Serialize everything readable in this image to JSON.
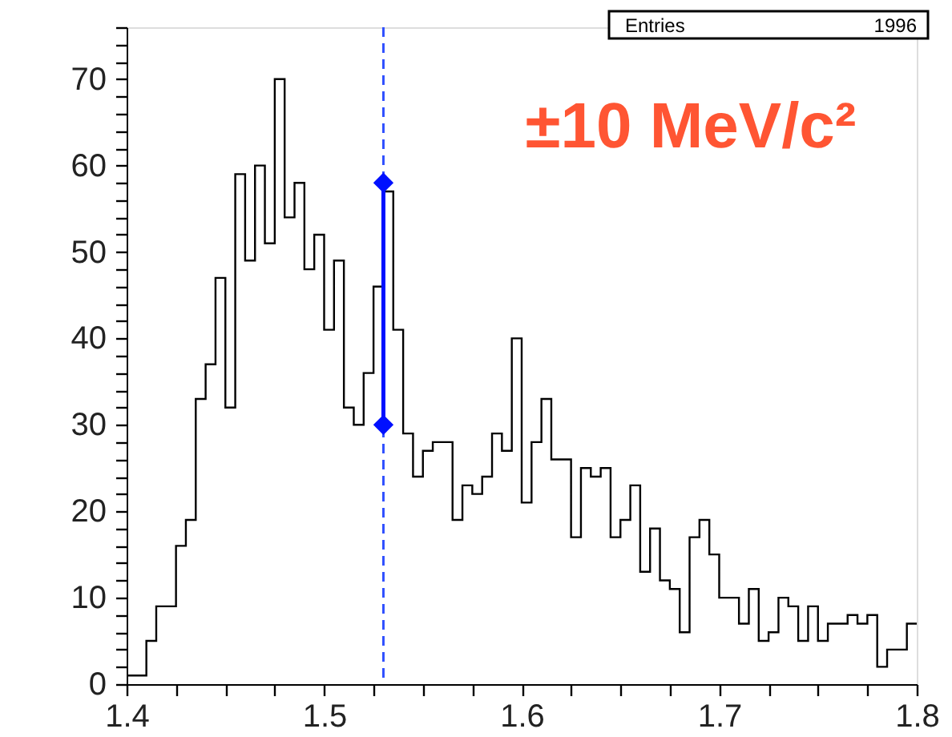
{
  "chart_data": {
    "type": "histogram",
    "color": "#000000",
    "bins": [
      1.4,
      1.405,
      1.41,
      1.415,
      1.42,
      1.425,
      1.43,
      1.435,
      1.44,
      1.445,
      1.45,
      1.455,
      1.46,
      1.465,
      1.47,
      1.475,
      1.48,
      1.485,
      1.49,
      1.495,
      1.5,
      1.505,
      1.51,
      1.515,
      1.52,
      1.525,
      1.53,
      1.535,
      1.54,
      1.545,
      1.55,
      1.555,
      1.56,
      1.565,
      1.57,
      1.575,
      1.58,
      1.585,
      1.59,
      1.595,
      1.6,
      1.605,
      1.61,
      1.615,
      1.62,
      1.625,
      1.63,
      1.635,
      1.64,
      1.645,
      1.65,
      1.655,
      1.66,
      1.665,
      1.67,
      1.675,
      1.68,
      1.685,
      1.69,
      1.695,
      1.7,
      1.705,
      1.71,
      1.715,
      1.72,
      1.725,
      1.73,
      1.735,
      1.74,
      1.745,
      1.75,
      1.755,
      1.76,
      1.765,
      1.77,
      1.775,
      1.78,
      1.785,
      1.79,
      1.795,
      1.8
    ],
    "values": [
      1,
      1,
      5,
      9,
      9,
      16,
      19,
      33,
      37,
      47,
      32,
      59,
      49,
      60,
      51,
      70,
      54,
      58,
      48,
      52,
      41,
      49,
      32,
      30,
      36,
      46,
      57,
      41,
      29,
      24,
      27,
      28,
      28,
      19,
      23,
      22,
      24,
      29,
      27,
      40,
      21,
      28,
      33,
      26,
      26,
      17,
      25,
      24,
      25,
      17,
      19,
      23,
      13,
      18,
      12,
      11,
      6,
      17,
      19,
      15,
      10,
      10,
      7,
      11,
      5,
      6,
      10,
      9,
      5,
      9,
      5,
      7,
      7,
      8,
      7,
      8,
      2,
      4,
      4,
      7
    ],
    "series": [
      {
        "type": "line",
        "x": [
          1.53,
          1.53
        ],
        "values": [
          30,
          58
        ],
        "color": "#0010ff",
        "marker": "diamond"
      }
    ],
    "xlim": [
      1.4,
      1.8
    ],
    "xticks": [
      1.4,
      {
        "value": 1.425,
        "label": null
      },
      {
        "value": 1.45,
        "label": null
      },
      {
        "value": 1.475,
        "label": null
      },
      1.5,
      {
        "value": 1.525,
        "label": null
      },
      {
        "value": 1.55,
        "label": null
      },
      {
        "value": 1.575,
        "label": null
      },
      1.6,
      {
        "value": 1.625,
        "label": null
      },
      {
        "value": 1.65,
        "label": null
      },
      {
        "value": 1.675,
        "label": null
      },
      1.7,
      {
        "value": 1.725,
        "label": null
      },
      {
        "value": 1.75,
        "label": null
      },
      {
        "value": 1.775,
        "label": null
      },
      1.8
    ],
    "ylim": [
      0,
      76
    ],
    "yticks": [
      0,
      {
        "value": 2,
        "label": null
      },
      {
        "value": 4,
        "label": null
      },
      {
        "value": 6,
        "label": null
      },
      {
        "value": 8,
        "label": null
      },
      10,
      {
        "value": 12,
        "label": null
      },
      {
        "value": 14,
        "label": null
      },
      {
        "value": 16,
        "label": null
      },
      {
        "value": 18,
        "label": null
      },
      20,
      {
        "value": 22,
        "label": null
      },
      {
        "value": 24,
        "label": null
      },
      {
        "value": 26,
        "label": null
      },
      {
        "value": 28,
        "label": null
      },
      30,
      {
        "value": 32,
        "label": null
      },
      {
        "value": 34,
        "label": null
      },
      {
        "value": 36,
        "label": null
      },
      {
        "value": 38,
        "label": null
      },
      40,
      {
        "value": 42,
        "label": null
      },
      {
        "value": 44,
        "label": null
      },
      {
        "value": 46,
        "label": null
      },
      {
        "value": 48,
        "label": null
      },
      50,
      {
        "value": 52,
        "label": null
      },
      {
        "value": 54,
        "label": null
      },
      {
        "value": 56,
        "label": null
      },
      {
        "value": 58,
        "label": null
      },
      60,
      {
        "value": 62,
        "label": null
      },
      {
        "value": 64,
        "label": null
      },
      {
        "value": 66,
        "label": null
      },
      {
        "value": 68,
        "label": null
      },
      70,
      {
        "value": 72,
        "label": null
      },
      {
        "value": 74,
        "label": null
      },
      {
        "value": 76,
        "label": null
      }
    ],
    "ref_lines": [
      {
        "axis": "x",
        "value": 1.53,
        "color": "#3050ff",
        "line_style": "dashed"
      }
    ],
    "annotations": [
      "±10 MeV/c²",
      "Entries",
      "1996"
    ],
    "grid": false
  }
}
